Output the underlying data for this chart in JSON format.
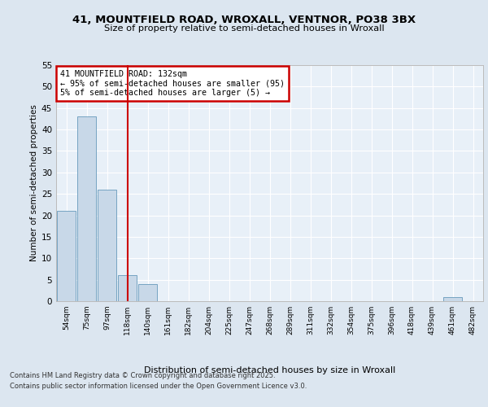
{
  "title1": "41, MOUNTFIELD ROAD, WROXALL, VENTNOR, PO38 3BX",
  "title2": "Size of property relative to semi-detached houses in Wroxall",
  "xlabel": "Distribution of semi-detached houses by size in Wroxall",
  "ylabel": "Number of semi-detached properties",
  "bins": [
    "54sqm",
    "75sqm",
    "97sqm",
    "118sqm",
    "140sqm",
    "161sqm",
    "182sqm",
    "204sqm",
    "225sqm",
    "247sqm",
    "268sqm",
    "289sqm",
    "311sqm",
    "332sqm",
    "354sqm",
    "375sqm",
    "396sqm",
    "418sqm",
    "439sqm",
    "461sqm",
    "482sqm"
  ],
  "values": [
    21,
    43,
    26,
    6,
    4,
    0,
    0,
    0,
    0,
    0,
    0,
    0,
    0,
    0,
    0,
    0,
    0,
    0,
    0,
    1,
    0
  ],
  "bar_color": "#c8d8e8",
  "bar_edge_color": "#6699bb",
  "vline_x_index": 3,
  "vline_color": "#cc0000",
  "annotation_title": "41 MOUNTFIELD ROAD: 132sqm",
  "annotation_line1": "← 95% of semi-detached houses are smaller (95)",
  "annotation_line2": "5% of semi-detached houses are larger (5) →",
  "annotation_box_color": "#cc0000",
  "ylim": [
    0,
    55
  ],
  "yticks": [
    0,
    5,
    10,
    15,
    20,
    25,
    30,
    35,
    40,
    45,
    50,
    55
  ],
  "footnote1": "Contains HM Land Registry data © Crown copyright and database right 2025.",
  "footnote2": "Contains public sector information licensed under the Open Government Licence v3.0.",
  "bg_color": "#dce6f0",
  "plot_bg_color": "#e8f0f8"
}
